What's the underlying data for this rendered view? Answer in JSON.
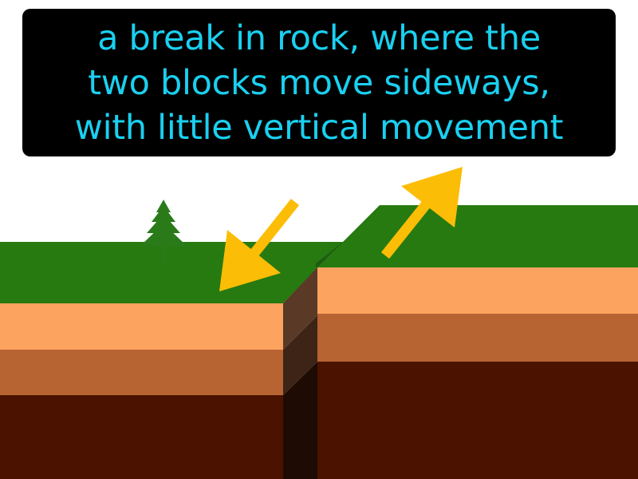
{
  "caption": {
    "lines": [
      "a break in rock, where the",
      "two blocks move sideways,",
      "with little vertical movement"
    ]
  },
  "colors": {
    "caption_background": "#000000",
    "caption_text": "#1ad0f0",
    "grass": "#267a10",
    "grass_dark": "#1e5c12",
    "rock_top_layer": "#fca360",
    "rock_middle_layer": "#b86332",
    "rock_bottom_layer": "#4b1200",
    "fault_plane": "#5a3a26",
    "arrow": "#fcbd06",
    "tree": "#2a7a1a"
  },
  "icons": {
    "tree": "pine-tree-icon",
    "arrow_left_block": "arrow-down-left-icon",
    "arrow_right_block": "arrow-up-right-icon"
  }
}
